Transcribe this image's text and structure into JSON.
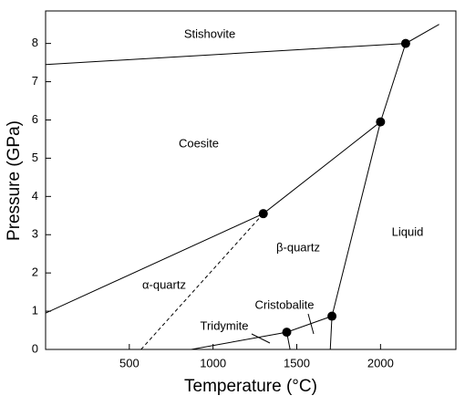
{
  "chart_data": {
    "type": "line",
    "xlabel": "Temperature (°C)",
    "ylabel": "Pressure (GPa)",
    "xlim": [
      0,
      2450
    ],
    "ylim": [
      0,
      8.85
    ],
    "xticks": [
      500,
      1000,
      1500,
      2000
    ],
    "yticks": [
      0,
      1,
      2,
      3,
      4,
      5,
      6,
      7,
      8
    ],
    "color": "#000000",
    "boundaries": [
      {
        "x": [
          0,
          2150
        ],
        "y": [
          7.45,
          8.0
        ],
        "dashed": false
      },
      {
        "x": [
          0,
          1300,
          2000
        ],
        "y": [
          0.95,
          3.55,
          5.95
        ],
        "dashed": false
      },
      {
        "x": [
          1710,
          2000,
          2150,
          2350
        ],
        "y": [
          0.87,
          5.95,
          8.0,
          8.5
        ],
        "dashed": false
      },
      {
        "x": [
          570,
          1300
        ],
        "y": [
          0,
          3.55
        ],
        "dashed": true
      },
      {
        "x": [
          870,
          1440,
          1710
        ],
        "y": [
          0,
          0.45,
          0.87
        ],
        "dashed": false
      },
      {
        "x": [
          1440,
          1460
        ],
        "y": [
          0.45,
          0
        ],
        "dashed": false
      },
      {
        "x": [
          1710,
          1700
        ],
        "y": [
          0.87,
          0
        ],
        "dashed": false
      }
    ],
    "points": {
      "x": [
        1440,
        1710,
        1300,
        2000,
        2150
      ],
      "y": [
        0.45,
        0.87,
        3.55,
        5.95,
        8.0
      ]
    },
    "annotations": [
      "Stishovite",
      "Coesite",
      "α-quartz",
      "β-quartz",
      "Liquid",
      "Cristobalite",
      "Tridymite"
    ]
  }
}
